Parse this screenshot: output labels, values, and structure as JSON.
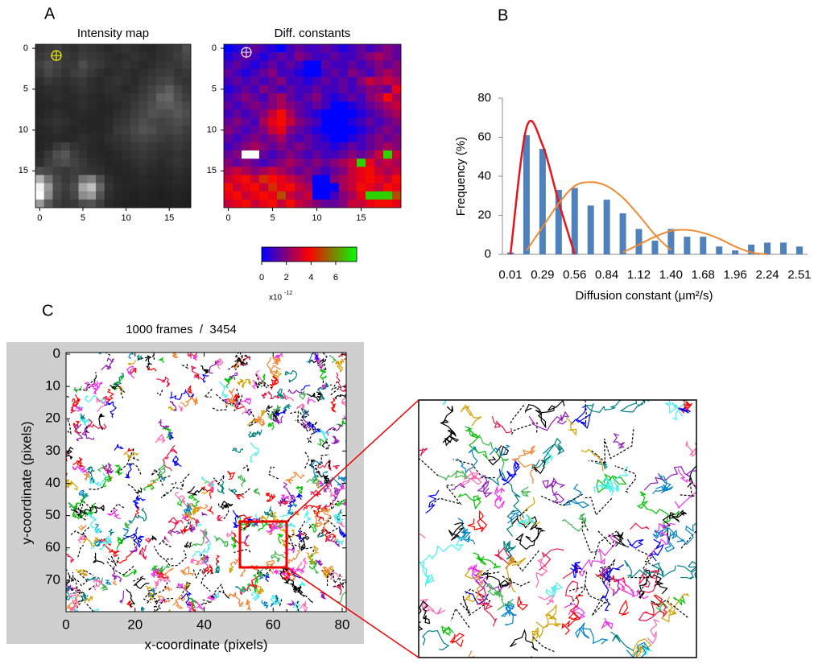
{
  "chart_data": [
    {
      "type": "heatmap",
      "panel": "A",
      "title": "Intensity map",
      "xlim": [
        -0.5,
        17.5
      ],
      "ylim": [
        -0.5,
        19.5
      ],
      "xticks": [
        0,
        5,
        10,
        15
      ],
      "yticks": [
        0,
        5,
        10,
        15
      ],
      "value_range": [
        0,
        100
      ],
      "values": [
        [
          20,
          22,
          25,
          20,
          18,
          22,
          20,
          18,
          16,
          18,
          20,
          18,
          16,
          15,
          18,
          20,
          22,
          30
        ],
        [
          22,
          25,
          28,
          22,
          20,
          24,
          22,
          20,
          18,
          16,
          18,
          20,
          18,
          16,
          18,
          20,
          24,
          28
        ],
        [
          25,
          30,
          26,
          22,
          22,
          30,
          24,
          22,
          18,
          18,
          20,
          18,
          16,
          18,
          20,
          22,
          22,
          25
        ],
        [
          22,
          28,
          24,
          20,
          24,
          26,
          22,
          18,
          16,
          18,
          18,
          16,
          18,
          20,
          22,
          24,
          20,
          22
        ],
        [
          18,
          22,
          20,
          18,
          20,
          22,
          18,
          16,
          18,
          20,
          18,
          16,
          20,
          22,
          26,
          28,
          22,
          20
        ],
        [
          16,
          18,
          18,
          16,
          18,
          20,
          18,
          16,
          18,
          18,
          16,
          18,
          22,
          26,
          30,
          36,
          28,
          22
        ],
        [
          15,
          16,
          18,
          16,
          16,
          18,
          16,
          15,
          16,
          18,
          18,
          20,
          24,
          28,
          38,
          40,
          30,
          24
        ],
        [
          14,
          15,
          16,
          15,
          16,
          18,
          16,
          14,
          15,
          16,
          18,
          22,
          26,
          30,
          34,
          36,
          32,
          28
        ],
        [
          14,
          16,
          18,
          16,
          15,
          16,
          15,
          14,
          15,
          18,
          20,
          24,
          28,
          32,
          30,
          30,
          34,
          30
        ],
        [
          16,
          18,
          20,
          18,
          16,
          15,
          14,
          15,
          16,
          20,
          22,
          26,
          30,
          28,
          26,
          28,
          30,
          28
        ],
        [
          15,
          16,
          18,
          16,
          15,
          16,
          15,
          14,
          16,
          22,
          24,
          28,
          32,
          30,
          26,
          26,
          28,
          24
        ],
        [
          14,
          15,
          16,
          15,
          16,
          18,
          16,
          15,
          18,
          20,
          22,
          26,
          28,
          26,
          24,
          22,
          24,
          22
        ],
        [
          14,
          16,
          22,
          26,
          20,
          18,
          16,
          14,
          16,
          18,
          20,
          22,
          24,
          22,
          20,
          20,
          22,
          20
        ],
        [
          16,
          22,
          30,
          34,
          24,
          20,
          16,
          15,
          14,
          16,
          18,
          20,
          22,
          20,
          18,
          18,
          20,
          18
        ],
        [
          18,
          24,
          28,
          30,
          26,
          22,
          18,
          16,
          14,
          15,
          16,
          18,
          20,
          18,
          16,
          18,
          20,
          18
        ],
        [
          30,
          28,
          24,
          22,
          24,
          22,
          20,
          18,
          15,
          14,
          15,
          16,
          18,
          16,
          15,
          16,
          18,
          16
        ],
        [
          70,
          45,
          28,
          22,
          26,
          45,
          50,
          30,
          18,
          15,
          14,
          15,
          16,
          15,
          14,
          15,
          16,
          15
        ],
        [
          95,
          60,
          30,
          24,
          30,
          65,
          75,
          40,
          20,
          16,
          15,
          14,
          15,
          14,
          13,
          14,
          15,
          14
        ],
        [
          100,
          55,
          28,
          22,
          28,
          55,
          60,
          32,
          18,
          15,
          14,
          13,
          14,
          13,
          12,
          13,
          14,
          13
        ],
        [
          60,
          35,
          24,
          20,
          22,
          30,
          32,
          24,
          16,
          14,
          13,
          12,
          13,
          12,
          12,
          12,
          13,
          12
        ]
      ]
    },
    {
      "type": "heatmap",
      "title": "Diff. constants",
      "xlim": [
        -0.5,
        19.5
      ],
      "ylim": [
        -0.5,
        19.5
      ],
      "xticks": [
        0,
        5,
        10,
        15
      ],
      "yticks": [
        0,
        5,
        10,
        15
      ],
      "colorbar": {
        "lim": [
          0,
          7.7
        ],
        "ticks": [
          0,
          2,
          4,
          6
        ],
        "scale_label": "x10",
        "scale_exponent": "-12"
      },
      "values": [
        [
          0,
          0.5,
          1,
          1.5,
          1,
          0.5,
          0,
          1,
          1.5,
          1,
          1,
          1.5,
          1,
          0.5,
          1,
          1.5,
          1,
          1.5,
          2,
          1.5
        ],
        [
          0.5,
          1,
          1.5,
          1,
          0.5,
          1,
          1.5,
          1,
          2,
          1.5,
          1,
          1,
          1.5,
          1,
          1,
          1.5,
          2,
          2.5,
          2,
          1.5
        ],
        [
          1,
          1.5,
          1,
          0.5,
          1,
          1.5,
          1,
          1.5,
          1,
          0,
          0,
          1.5,
          1,
          1,
          1.5,
          1,
          1.5,
          2,
          1.5,
          2
        ],
        [
          1.5,
          1,
          0.5,
          1,
          1.5,
          2,
          1,
          1,
          0.5,
          0,
          0,
          1,
          1.5,
          1,
          2,
          1.5,
          1,
          2,
          2.5,
          2
        ],
        [
          1,
          1.5,
          1,
          1.5,
          1,
          1.5,
          2,
          1,
          1,
          0.5,
          1,
          1.5,
          1,
          1.5,
          1,
          2,
          3,
          2.5,
          3,
          2.5
        ],
        [
          0.5,
          1,
          1.5,
          1,
          2,
          1.5,
          1,
          1.5,
          1,
          1,
          1.5,
          1,
          1,
          1.5,
          1,
          1.5,
          2,
          2,
          1.5,
          3.5
        ],
        [
          1,
          1.5,
          2,
          1.5,
          1,
          2,
          2.5,
          1.5,
          1,
          1.5,
          2,
          1,
          0.5,
          1,
          1.5,
          1,
          2,
          2.5,
          4,
          2.5
        ],
        [
          1.5,
          1,
          1.5,
          2,
          1.5,
          2,
          2.5,
          2,
          1.5,
          1,
          1.5,
          1,
          0,
          0,
          0.5,
          1,
          1.5,
          2,
          2.5,
          3
        ],
        [
          1,
          1.5,
          1,
          1.5,
          2,
          3,
          4,
          2.5,
          1.5,
          1,
          0.5,
          0,
          0,
          0,
          0,
          0.5,
          1,
          1.5,
          2,
          2.5
        ],
        [
          1.5,
          2,
          1.5,
          1,
          2.5,
          3.5,
          4,
          3,
          2,
          1.5,
          1,
          0,
          0,
          0,
          0.5,
          1,
          1.5,
          1,
          1.5,
          2
        ],
        [
          2,
          1.5,
          1,
          1.5,
          2,
          3,
          3.5,
          2,
          1.5,
          1,
          0.5,
          0,
          0,
          0,
          0,
          0.5,
          1,
          1.5,
          2,
          1.5
        ],
        [
          1.5,
          1,
          1.5,
          2,
          1.5,
          2,
          2.5,
          1.5,
          1,
          1.5,
          1,
          0.5,
          0,
          0,
          0.5,
          1,
          1.5,
          2,
          1.5,
          2
        ],
        [
          1,
          1.5,
          2,
          2.5,
          2,
          1.5,
          2,
          1.5,
          2,
          1.5,
          1,
          1,
          0.5,
          1,
          1.5,
          1,
          1.5,
          2,
          2.5,
          2
        ],
        [
          1.5,
          2,
          9,
          9,
          1.5,
          1,
          1.5,
          2,
          1.5,
          1,
          1.5,
          1,
          1,
          1.5,
          2,
          1.5,
          2,
          3,
          7,
          3
        ],
        [
          2,
          1.5,
          2,
          1.5,
          1,
          1.5,
          2,
          2.5,
          2,
          1.5,
          2,
          1.5,
          2,
          2.5,
          3,
          7,
          3.5,
          2.5,
          3,
          2.5
        ],
        [
          2.5,
          3,
          2.5,
          2,
          2.5,
          3,
          2.5,
          2,
          1.5,
          2,
          1.5,
          1,
          1.5,
          2,
          3,
          3.5,
          4,
          3,
          2.5,
          3
        ],
        [
          3,
          3.5,
          4,
          3,
          4.5,
          4,
          3.5,
          3,
          2.5,
          2,
          0,
          0,
          2,
          2.5,
          3,
          3.5,
          4,
          3.5,
          3,
          4
        ],
        [
          4,
          3,
          3.5,
          4,
          3,
          4.5,
          3.5,
          4,
          3,
          2.5,
          0,
          0,
          0,
          2.5,
          3,
          4,
          3.5,
          3,
          4,
          3.5
        ],
        [
          3.5,
          4,
          3,
          3.5,
          4,
          3.5,
          5,
          3,
          2.5,
          3,
          0,
          0,
          1,
          2,
          2.5,
          3.5,
          7,
          7,
          7,
          5
        ],
        [
          3,
          3.5,
          4,
          3,
          3.5,
          4,
          3,
          4,
          3,
          2.5,
          2,
          1.5,
          1.5,
          2,
          3,
          3,
          3.5,
          4,
          4,
          3.5
        ]
      ]
    },
    {
      "type": "bar",
      "panel": "B",
      "x_label": "Diffusion constant (μm²/s)",
      "y_label": "Frequency (%)",
      "categories": [
        "0.01",
        null,
        "0.29",
        null,
        "0.56",
        null,
        "0.84",
        null,
        "1.12",
        null,
        "1.40",
        null,
        "1.68",
        null,
        "1.96",
        null,
        "2.24",
        null,
        "2.51"
      ],
      "values": [
        1,
        61,
        54,
        33,
        34,
        25,
        28,
        21,
        13,
        7,
        13,
        9,
        9,
        4,
        2,
        5,
        6,
        6,
        4
      ],
      "color": "#4f81bd",
      "ylim": [
        0,
        80
      ],
      "yticks": [
        0,
        20,
        40,
        60,
        80
      ],
      "fits": [
        {
          "color": "#e8141b",
          "values": [
            0,
            65,
            56,
            27,
            0,
            null,
            null,
            null,
            null,
            null,
            null,
            null,
            null,
            null,
            null,
            null,
            null,
            null,
            null
          ]
        },
        {
          "color": "#ee8a34",
          "values": [
            null,
            2,
            14,
            26,
            35,
            37,
            35,
            29,
            20,
            10,
            2,
            null,
            null,
            null,
            null,
            null,
            null,
            null,
            null
          ]
        },
        {
          "color": "#ee8a34",
          "values": [
            null,
            null,
            null,
            null,
            null,
            null,
            null,
            1,
            5,
            9,
            12,
            12.5,
            11,
            8,
            4,
            1,
            0,
            null,
            null
          ]
        }
      ]
    },
    {
      "type": "trajectory",
      "panel": "C",
      "title": "1000 frames  /  3454",
      "x_label": "x-coordinate (pixels)",
      "y_label": "y-coordinate (pixels)",
      "xlim": [
        0,
        80
      ],
      "ylim": [
        0,
        80
      ],
      "xticks": [
        0,
        20,
        40,
        60,
        80
      ],
      "yticks": [
        0,
        10,
        20,
        30,
        40,
        50,
        60,
        70
      ]
    }
  ]
}
